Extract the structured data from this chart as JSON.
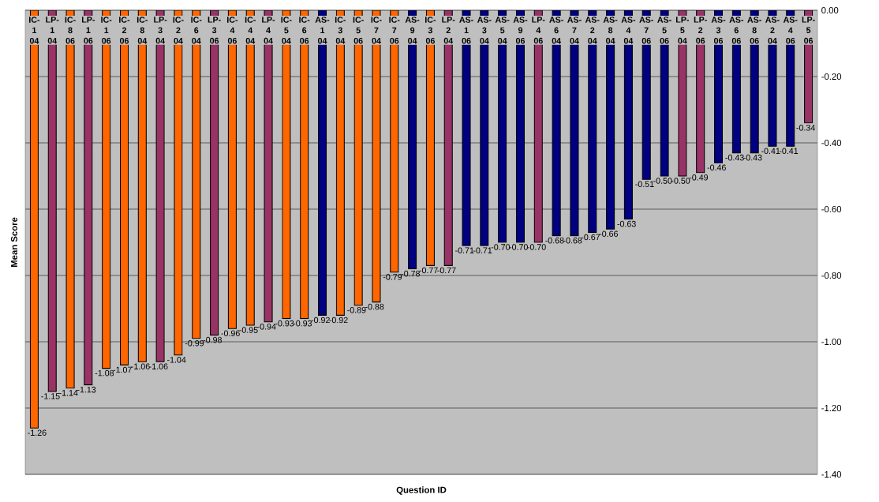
{
  "chart_data": {
    "type": "bar",
    "xlabel": "Question ID",
    "ylabel": "Mean Score",
    "categories": [
      "IC-1 04",
      "LP-1 04",
      "IC-8 06",
      "LP-1 06",
      "IC-1 06",
      "IC-2 06",
      "IC-8 04",
      "LP-3 04",
      "IC-2 04",
      "IC-6 04",
      "LP-3 06",
      "IC-4 06",
      "IC-4 04",
      "LP-4 04",
      "IC-5 04",
      "IC-6 06",
      "AS-1 04",
      "IC-3 04",
      "IC-5 06",
      "IC-7 04",
      "IC-7 06",
      "AS-9 04",
      "IC-3 06",
      "LP-2 04",
      "AS-1 06",
      "AS-3 04",
      "AS-5 04",
      "AS-9 06",
      "LP-4 06",
      "AS-6 04",
      "AS-7 04",
      "AS-2 04",
      "AS-8 04",
      "AS-4 04",
      "AS-7 06",
      "AS-5 06",
      "LP-5 04",
      "LP-2 06",
      "AS-3 06",
      "AS-6 06",
      "AS-8 06",
      "AS-2 04",
      "AS-4 06",
      "LP-5 06"
    ],
    "values": [
      -1.26,
      -1.15,
      -1.14,
      -1.13,
      -1.08,
      -1.07,
      -1.06,
      -1.06,
      -1.04,
      -0.99,
      -0.98,
      -0.96,
      -0.95,
      -0.94,
      -0.93,
      -0.93,
      -0.92,
      -0.92,
      -0.89,
      -0.88,
      -0.79,
      -0.78,
      -0.77,
      -0.77,
      -0.71,
      -0.71,
      -0.7,
      -0.7,
      -0.7,
      -0.68,
      -0.68,
      -0.67,
      -0.66,
      -0.63,
      -0.51,
      -0.5,
      -0.5,
      -0.49,
      -0.46,
      -0.43,
      -0.43,
      -0.41,
      -0.41,
      -0.34
    ],
    "value_labels": [
      "-1.26",
      "-1.15",
      "-1.14",
      "-1.13",
      "-1.08",
      "-1.07",
      "-1.06",
      "-1.06",
      "-1.04",
      "-0.99",
      "-0.98",
      "-0.96",
      "-0.95",
      "-0.94",
      "-0.93",
      "-0.93",
      "-0.92",
      "-0.92",
      "-0.89",
      "-0.88",
      "-0.79",
      "-0.78",
      "-0.77",
      "-0.77",
      "-0.71",
      "-0.71",
      "-0.70",
      "-0.70",
      "-0.70",
      "-0.68",
      "-0.68",
      "-0.67",
      "-0.66",
      "-0.63",
      "-0.51",
      "-0.50",
      "-0.50",
      "-0.49",
      "-0.46",
      "-0.43",
      "-0.43",
      "-0.41",
      "-0.41",
      "-0.34"
    ],
    "colors": [
      "#ff6600",
      "#993366",
      "#ff6600",
      "#993366",
      "#ff6600",
      "#ff6600",
      "#ff6600",
      "#993366",
      "#ff6600",
      "#ff6600",
      "#993366",
      "#ff6600",
      "#ff6600",
      "#993366",
      "#ff6600",
      "#ff6600",
      "#000080",
      "#ff6600",
      "#ff6600",
      "#ff6600",
      "#ff6600",
      "#000080",
      "#ff6600",
      "#993366",
      "#000080",
      "#000080",
      "#000080",
      "#000080",
      "#993366",
      "#000080",
      "#000080",
      "#000080",
      "#000080",
      "#000080",
      "#000080",
      "#000080",
      "#993366",
      "#993366",
      "#000080",
      "#000080",
      "#000080",
      "#000080",
      "#000080",
      "#993366"
    ],
    "ylim": [
      -1.4,
      0
    ],
    "yticks": [
      {
        "value": 0,
        "label": "0.00"
      },
      {
        "value": -0.2,
        "label": "-0.20"
      },
      {
        "value": -0.4,
        "label": "-0.40"
      },
      {
        "value": -0.6,
        "label": "-0.60"
      },
      {
        "value": -0.8,
        "label": "-0.80"
      },
      {
        "value": -1.0,
        "label": "-1.00"
      },
      {
        "value": -1.2,
        "label": "-1.20"
      },
      {
        "value": -1.4,
        "label": "-1.40"
      }
    ],
    "grid": "y"
  }
}
